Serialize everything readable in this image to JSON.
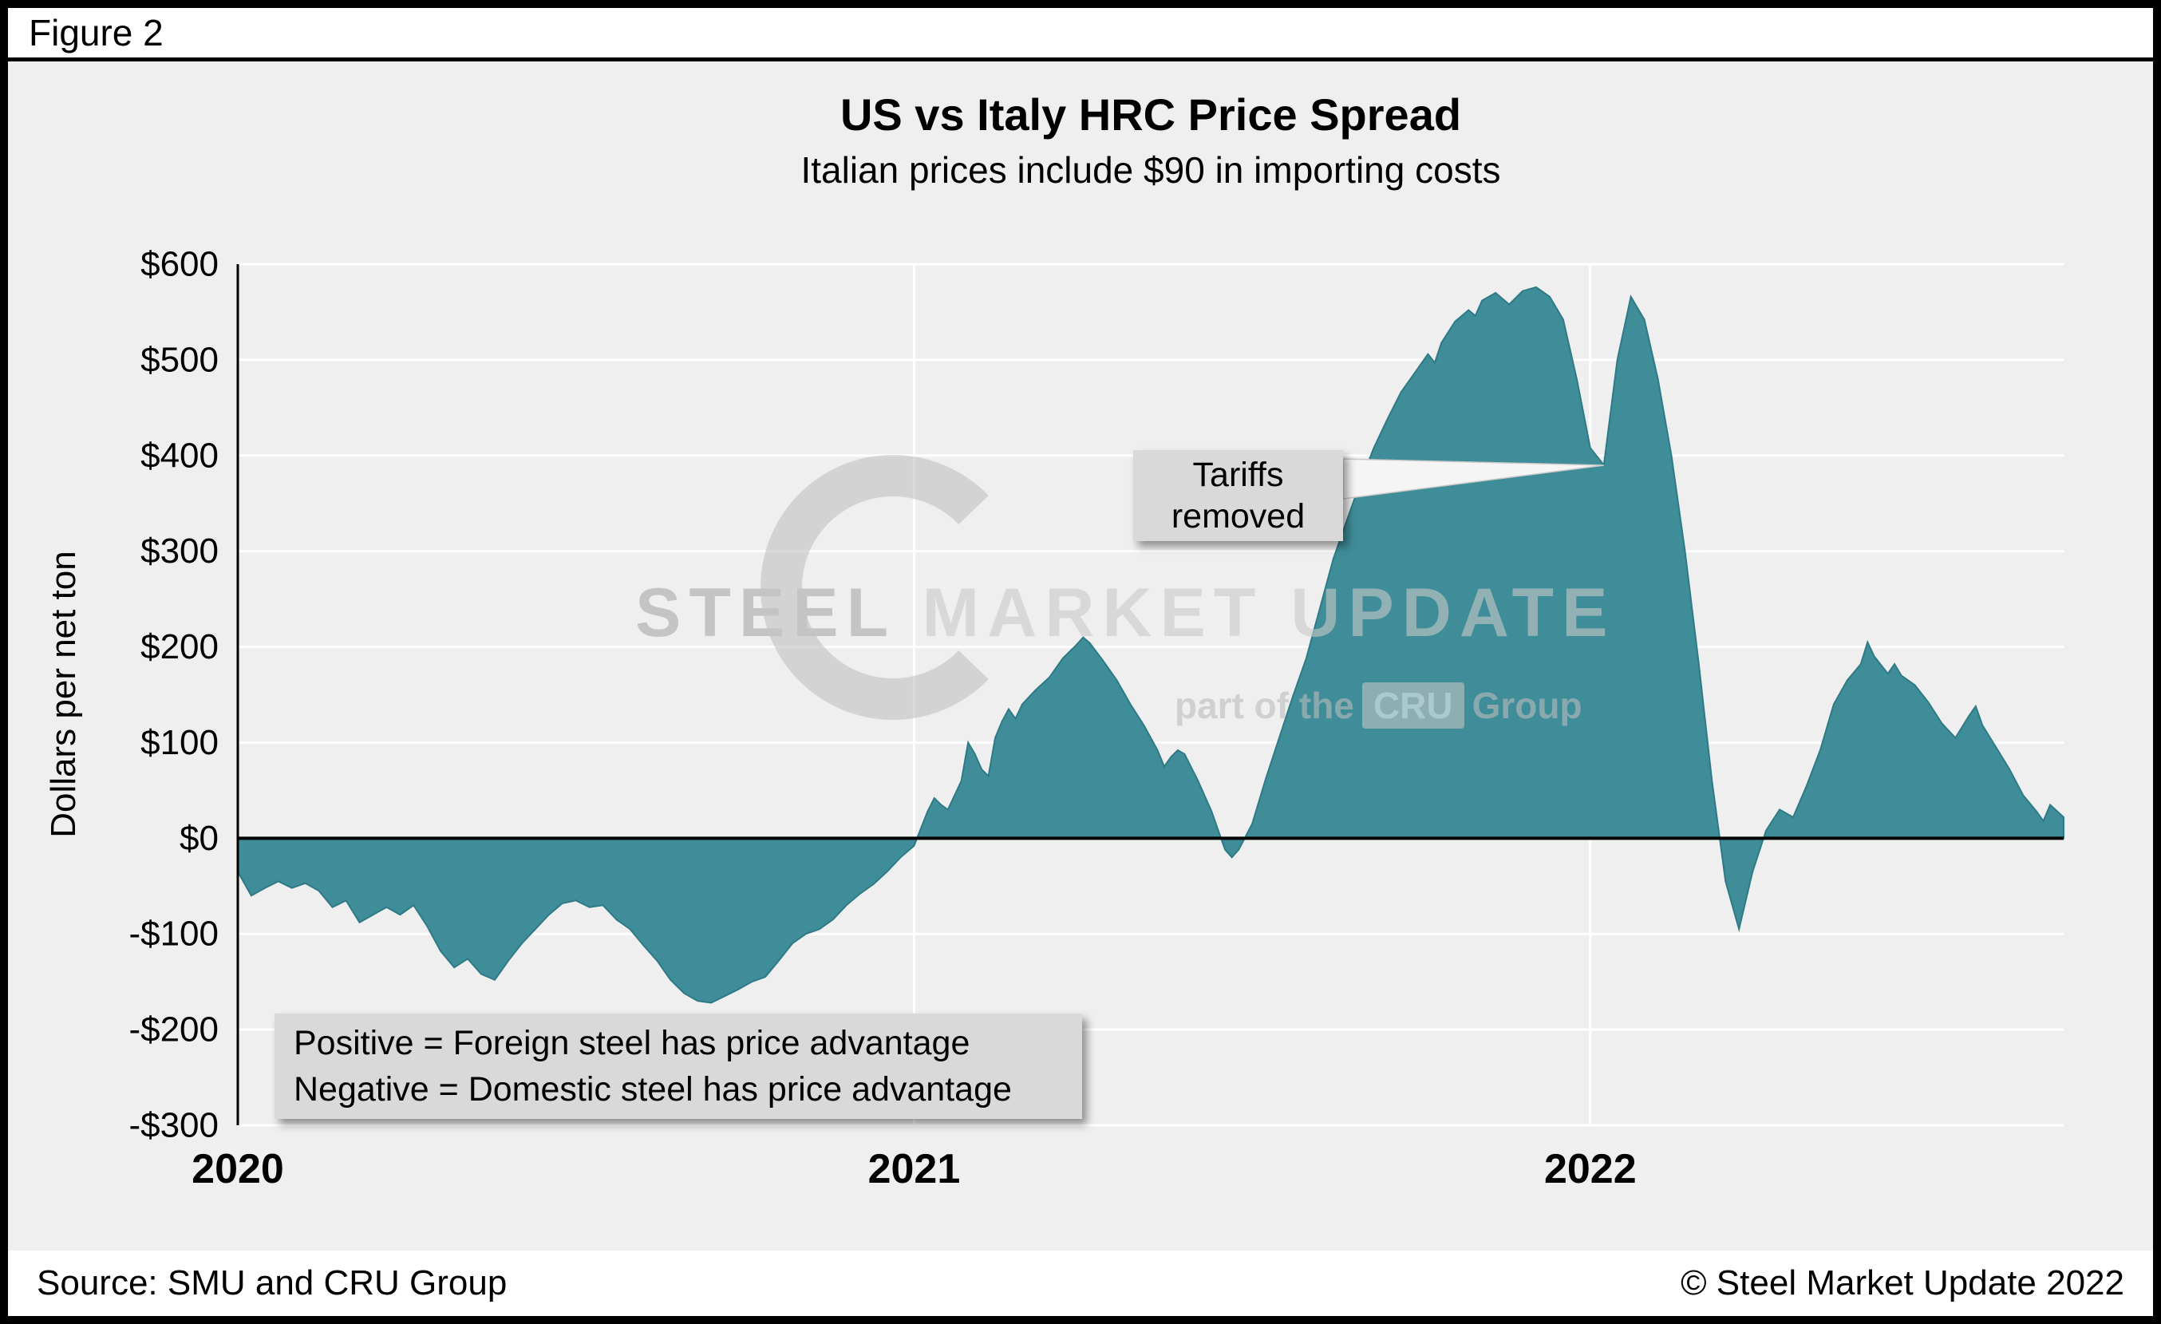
{
  "figure_label": "Figure 2",
  "footer": {
    "source": "Source: SMU and CRU Group",
    "copyright": "© Steel Market Update 2022"
  },
  "watermark": {
    "line1_bold": "STEEL",
    "line1_rest": " MARKET UPDATE",
    "line2_pre": "part of the",
    "line2_box": "CRU",
    "line2_post": "Group"
  },
  "chart_data": {
    "type": "area",
    "title": "US vs Italy HRC Price Spread",
    "subtitle": "Italian prices include $90 in importing costs",
    "ylabel": "Dollars per net ton",
    "xlabel": "",
    "ylim": [
      -300,
      600
    ],
    "x_range": [
      2020.0,
      2022.7
    ],
    "x_unit": "decimal_year",
    "baseline": 0,
    "grid": "on",
    "area_color": "#3f8d99",
    "area_edge_color": "#2e7a86",
    "background_color": "#efefef",
    "yticks": [
      {
        "value": 600,
        "label": "$600"
      },
      {
        "value": 500,
        "label": "$500"
      },
      {
        "value": 400,
        "label": "$400"
      },
      {
        "value": 300,
        "label": "$300"
      },
      {
        "value": 200,
        "label": "$200"
      },
      {
        "value": 100,
        "label": "$100"
      },
      {
        "value": 0,
        "label": "$0"
      },
      {
        "value": -100,
        "label": "-$100"
      },
      {
        "value": -200,
        "label": "-$200"
      },
      {
        "value": -300,
        "label": "-$300"
      }
    ],
    "xticks": [
      {
        "value": 2020,
        "label": "2020"
      },
      {
        "value": 2021,
        "label": "2021"
      },
      {
        "value": 2022,
        "label": "2022"
      }
    ],
    "annotations": [
      {
        "id": "tariffs-removed",
        "text_lines": [
          "Tariffs",
          "removed"
        ],
        "points_to": {
          "x": 2022.02,
          "y": 390
        }
      },
      {
        "id": "legend-note",
        "text_lines": [
          "Positive = Foreign steel has price advantage",
          "Negative = Domestic steel has price advantage"
        ]
      }
    ],
    "series": [
      {
        "name": "US vs Italy HRC price spread ($/net ton)",
        "points": [
          [
            2020.0,
            -35
          ],
          [
            2020.02,
            -60
          ],
          [
            2020.04,
            -52
          ],
          [
            2020.06,
            -45
          ],
          [
            2020.08,
            -52
          ],
          [
            2020.1,
            -47
          ],
          [
            2020.12,
            -55
          ],
          [
            2020.14,
            -72
          ],
          [
            2020.16,
            -65
          ],
          [
            2020.18,
            -88
          ],
          [
            2020.2,
            -80
          ],
          [
            2020.22,
            -72
          ],
          [
            2020.24,
            -80
          ],
          [
            2020.26,
            -70
          ],
          [
            2020.28,
            -92
          ],
          [
            2020.3,
            -118
          ],
          [
            2020.32,
            -135
          ],
          [
            2020.34,
            -126
          ],
          [
            2020.36,
            -142
          ],
          [
            2020.38,
            -148
          ],
          [
            2020.4,
            -128
          ],
          [
            2020.42,
            -110
          ],
          [
            2020.44,
            -95
          ],
          [
            2020.46,
            -80
          ],
          [
            2020.48,
            -68
          ],
          [
            2020.5,
            -65
          ],
          [
            2020.52,
            -72
          ],
          [
            2020.54,
            -70
          ],
          [
            2020.56,
            -85
          ],
          [
            2020.58,
            -95
          ],
          [
            2020.6,
            -112
          ],
          [
            2020.62,
            -128
          ],
          [
            2020.64,
            -148
          ],
          [
            2020.66,
            -162
          ],
          [
            2020.68,
            -170
          ],
          [
            2020.7,
            -172
          ],
          [
            2020.72,
            -165
          ],
          [
            2020.74,
            -158
          ],
          [
            2020.76,
            -150
          ],
          [
            2020.78,
            -145
          ],
          [
            2020.8,
            -128
          ],
          [
            2020.82,
            -110
          ],
          [
            2020.84,
            -100
          ],
          [
            2020.86,
            -95
          ],
          [
            2020.88,
            -85
          ],
          [
            2020.9,
            -70
          ],
          [
            2020.92,
            -58
          ],
          [
            2020.94,
            -48
          ],
          [
            2020.96,
            -35
          ],
          [
            2020.98,
            -20
          ],
          [
            2021.0,
            -8
          ],
          [
            2021.01,
            10
          ],
          [
            2021.02,
            28
          ],
          [
            2021.03,
            42
          ],
          [
            2021.04,
            35
          ],
          [
            2021.05,
            30
          ],
          [
            2021.06,
            45
          ],
          [
            2021.07,
            60
          ],
          [
            2021.08,
            100
          ],
          [
            2021.09,
            88
          ],
          [
            2021.1,
            72
          ],
          [
            2021.11,
            65
          ],
          [
            2021.12,
            105
          ],
          [
            2021.13,
            122
          ],
          [
            2021.14,
            135
          ],
          [
            2021.15,
            125
          ],
          [
            2021.16,
            140
          ],
          [
            2021.18,
            155
          ],
          [
            2021.2,
            168
          ],
          [
            2021.22,
            188
          ],
          [
            2021.24,
            202
          ],
          [
            2021.25,
            210
          ],
          [
            2021.26,
            204
          ],
          [
            2021.28,
            185
          ],
          [
            2021.3,
            165
          ],
          [
            2021.32,
            140
          ],
          [
            2021.34,
            118
          ],
          [
            2021.36,
            92
          ],
          [
            2021.37,
            75
          ],
          [
            2021.38,
            85
          ],
          [
            2021.39,
            92
          ],
          [
            2021.4,
            88
          ],
          [
            2021.42,
            60
          ],
          [
            2021.44,
            28
          ],
          [
            2021.45,
            8
          ],
          [
            2021.46,
            -12
          ],
          [
            2021.47,
            -20
          ],
          [
            2021.48,
            -12
          ],
          [
            2021.5,
            15
          ],
          [
            2021.52,
            62
          ],
          [
            2021.54,
            105
          ],
          [
            2021.56,
            148
          ],
          [
            2021.58,
            188
          ],
          [
            2021.6,
            240
          ],
          [
            2021.62,
            292
          ],
          [
            2021.64,
            332
          ],
          [
            2021.66,
            372
          ],
          [
            2021.68,
            408
          ],
          [
            2021.7,
            438
          ],
          [
            2021.72,
            466
          ],
          [
            2021.74,
            486
          ],
          [
            2021.76,
            506
          ],
          [
            2021.77,
            497
          ],
          [
            2021.78,
            518
          ],
          [
            2021.8,
            540
          ],
          [
            2021.82,
            552
          ],
          [
            2021.83,
            546
          ],
          [
            2021.84,
            562
          ],
          [
            2021.86,
            570
          ],
          [
            2021.88,
            558
          ],
          [
            2021.9,
            572
          ],
          [
            2021.92,
            576
          ],
          [
            2021.94,
            566
          ],
          [
            2021.96,
            542
          ],
          [
            2021.98,
            480
          ],
          [
            2022.0,
            408
          ],
          [
            2022.02,
            390
          ],
          [
            2022.04,
            500
          ],
          [
            2022.06,
            566
          ],
          [
            2022.08,
            542
          ],
          [
            2022.1,
            480
          ],
          [
            2022.12,
            400
          ],
          [
            2022.14,
            300
          ],
          [
            2022.16,
            185
          ],
          [
            2022.18,
            60
          ],
          [
            2022.2,
            -45
          ],
          [
            2022.22,
            -95
          ],
          [
            2022.24,
            -35
          ],
          [
            2022.26,
            8
          ],
          [
            2022.28,
            30
          ],
          [
            2022.3,
            22
          ],
          [
            2022.32,
            55
          ],
          [
            2022.34,
            92
          ],
          [
            2022.36,
            140
          ],
          [
            2022.38,
            165
          ],
          [
            2022.4,
            182
          ],
          [
            2022.41,
            205
          ],
          [
            2022.42,
            190
          ],
          [
            2022.44,
            172
          ],
          [
            2022.45,
            182
          ],
          [
            2022.46,
            170
          ],
          [
            2022.48,
            160
          ],
          [
            2022.5,
            142
          ],
          [
            2022.52,
            120
          ],
          [
            2022.54,
            105
          ],
          [
            2022.56,
            128
          ],
          [
            2022.57,
            138
          ],
          [
            2022.58,
            118
          ],
          [
            2022.6,
            95
          ],
          [
            2022.62,
            72
          ],
          [
            2022.64,
            45
          ],
          [
            2022.66,
            28
          ],
          [
            2022.67,
            18
          ],
          [
            2022.68,
            35
          ],
          [
            2022.7,
            22
          ]
        ]
      }
    ]
  }
}
